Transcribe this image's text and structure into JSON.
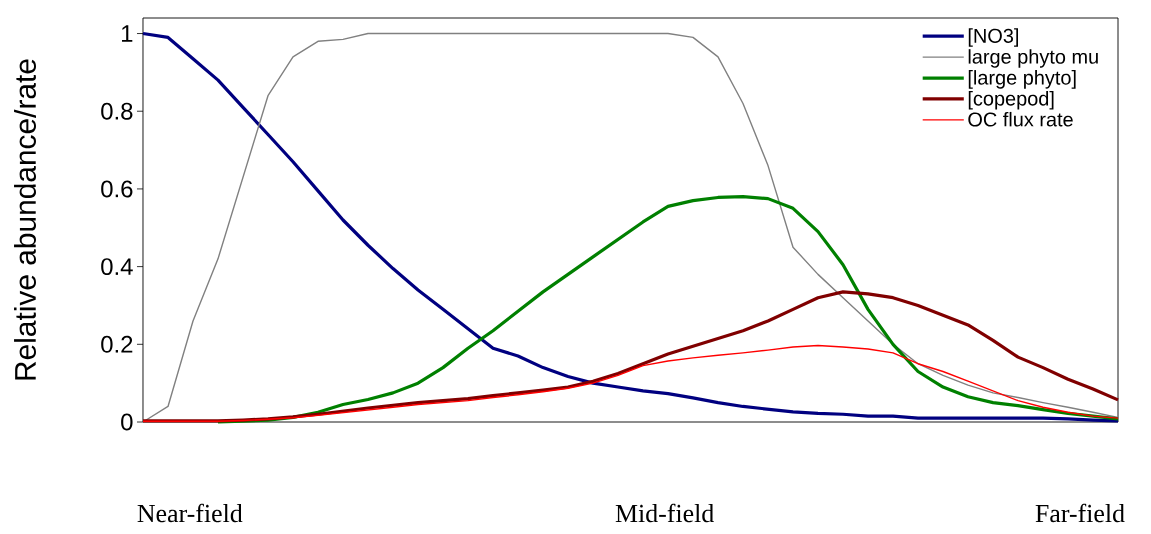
{
  "chart_data": {
    "type": "line",
    "ylabel": "Relative abundance/rate",
    "categories": [
      null,
      null,
      null,
      null,
      null,
      null,
      null,
      null,
      null,
      null,
      null,
      null,
      null,
      null,
      null,
      null,
      null,
      null,
      null,
      null,
      null,
      null,
      null,
      null,
      null,
      null,
      null,
      null,
      null,
      null,
      null,
      null,
      null,
      null,
      null,
      null,
      null,
      null,
      null,
      null
    ],
    "series": [
      {
        "name": "[NO3]",
        "color": "#000080",
        "values": [
          1.0,
          0.99,
          0.935,
          0.88,
          0.81,
          0.74,
          0.67,
          0.595,
          0.52,
          0.455,
          0.395,
          0.34,
          0.29,
          0.24,
          0.19,
          0.17,
          0.14,
          0.117,
          0.1,
          0.09,
          0.08,
          0.073,
          0.062,
          0.05,
          0.04,
          0.033,
          0.026,
          0.022,
          0.02,
          0.015,
          0.015,
          0.01,
          0.01,
          0.01,
          0.01,
          0.01,
          0.01,
          0.008,
          0.005,
          0.003
        ]
      },
      {
        "name": "large phyto mu",
        "color": "#808080",
        "values": [
          0,
          0.04,
          0.26,
          0.42,
          0.63,
          0.84,
          0.94,
          0.98,
          0.985,
          1.0,
          1.0,
          1.0,
          1.0,
          1.0,
          1.0,
          1.0,
          1.0,
          1.0,
          1.0,
          1.0,
          1.0,
          1.0,
          0.99,
          0.94,
          0.82,
          0.66,
          0.45,
          0.38,
          0.32,
          0.26,
          0.2,
          0.15,
          0.12,
          0.095,
          0.075,
          0.063,
          0.05,
          0.038,
          0.025,
          0.012
        ]
      },
      {
        "name": "[large phyto]",
        "color": "#008000",
        "values": [
          null,
          null,
          null,
          0,
          0.002,
          0.005,
          0.012,
          0.025,
          0.045,
          0.058,
          0.075,
          0.1,
          0.14,
          0.19,
          0.235,
          0.285,
          0.335,
          0.38,
          0.425,
          0.47,
          0.515,
          0.555,
          0.57,
          0.578,
          0.58,
          0.575,
          0.55,
          0.49,
          0.405,
          0.29,
          0.2,
          0.13,
          0.09,
          0.065,
          0.05,
          0.042,
          0.032,
          0.022,
          0.015,
          0.008
        ]
      },
      {
        "name": "[copepod]",
        "color": "#800000",
        "values": [
          0.003,
          0.003,
          0.003,
          0.003,
          0.005,
          0.008,
          0.013,
          0.02,
          0.028,
          0.036,
          0.043,
          0.05,
          0.055,
          0.06,
          0.068,
          0.075,
          0.082,
          0.09,
          0.105,
          0.125,
          0.15,
          0.175,
          0.195,
          0.215,
          0.235,
          0.26,
          0.29,
          0.32,
          0.335,
          0.33,
          0.32,
          0.3,
          0.275,
          0.25,
          0.21,
          0.167,
          0.14,
          0.11,
          0.085,
          0.057
        ]
      },
      {
        "name": "OC flux rate",
        "color": "#ff0000",
        "values": [
          0.002,
          0.002,
          0.002,
          0.002,
          0.004,
          0.007,
          0.011,
          0.017,
          0.024,
          0.031,
          0.038,
          0.045,
          0.05,
          0.055,
          0.063,
          0.07,
          0.078,
          0.087,
          0.1,
          0.12,
          0.145,
          0.157,
          0.165,
          0.172,
          0.178,
          0.185,
          0.193,
          0.197,
          0.193,
          0.188,
          0.178,
          0.15,
          0.13,
          0.105,
          0.08,
          0.055,
          0.038,
          0.025,
          0.015,
          0.01
        ]
      }
    ],
    "ylim": [
      0,
      1.04
    ],
    "yticks": [
      0,
      0.2,
      0.4,
      0.6,
      0.8,
      1
    ],
    "legend": "top right",
    "marker": "none",
    "line_style": "solid",
    "annotations": [
      "Near-field",
      "Mid-field",
      "Far-field"
    ]
  }
}
